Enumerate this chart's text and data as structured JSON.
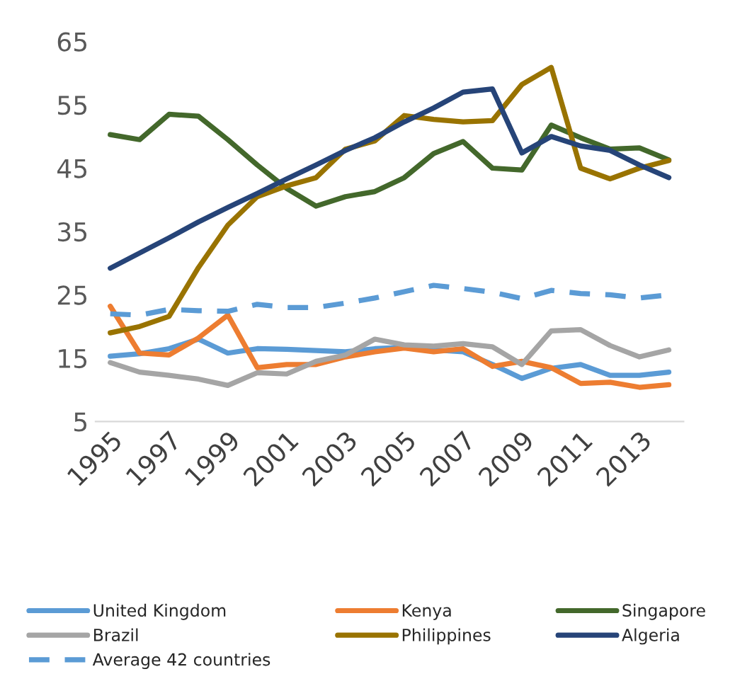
{
  "chart_data": {
    "type": "line",
    "categories": [
      "1995",
      null,
      "1997",
      null,
      "1999",
      null,
      "2001",
      null,
      "2003",
      null,
      "2005",
      null,
      "2007",
      null,
      "2009",
      null,
      "2011",
      null,
      "2013",
      null
    ],
    "series": [
      {
        "name": "United Kingdom",
        "color": "#5b9bd5",
        "values": [
          15.3,
          15.7,
          16.5,
          18,
          15.8,
          16.5,
          16.4,
          16.2,
          16,
          16.5,
          16.7,
          16.3,
          16,
          14,
          11.8,
          13.4,
          14,
          12.3,
          12.3,
          12.8
        ]
      },
      {
        "name": "Kenya",
        "color": "#ed7d31",
        "values": [
          23.2,
          15.8,
          15.5,
          18.2,
          21.8,
          13.5,
          14,
          14,
          15.2,
          16,
          16.6,
          16,
          16.5,
          13.7,
          14.5,
          13.5,
          11,
          11.2,
          10.4,
          10.8
        ]
      },
      {
        "name": "Singapore",
        "color": "#43682b",
        "values": [
          50.3,
          49.5,
          53.5,
          53.2,
          49.5,
          45.5,
          41.8,
          39,
          40.5,
          41.3,
          43.5,
          47.3,
          49.2,
          45,
          44.7,
          51.8,
          49.8,
          48,
          48.2,
          46.3
        ]
      },
      {
        "name": "Brazil",
        "color": "#a5a5a5",
        "values": [
          14.3,
          12.8,
          12.3,
          11.7,
          10.7,
          12.7,
          12.5,
          14.5,
          15.5,
          18,
          17.1,
          16.9,
          17.3,
          16.8,
          14,
          19.3,
          19.5,
          17,
          15.2,
          16.3
        ]
      },
      {
        "name": "Philippines",
        "color": "#997300",
        "values": [
          19,
          20,
          21.6,
          29.3,
          36,
          40.5,
          42.2,
          43.5,
          48,
          49.3,
          53.3,
          52.7,
          52.3,
          52.5,
          58.2,
          60.9,
          45,
          43.3,
          45,
          46.2
        ]
      },
      {
        "name": "Algeria",
        "color": "#264478",
        "values": [
          29.2,
          31.6,
          34,
          36.5,
          38.8,
          41,
          43.3,
          45.5,
          47.8,
          49.8,
          52.3,
          54.5,
          57,
          57.5,
          47.4,
          50,
          48.5,
          47.8,
          45.5,
          43.5
        ]
      },
      {
        "name": "Average 42 countries",
        "color": "#5b9bd5",
        "line_style": "dashed",
        "values": [
          22,
          21.8,
          22.7,
          22.5,
          22.4,
          23.5,
          23,
          23,
          23.7,
          24.5,
          25.5,
          26.5,
          26,
          25.4,
          24.4,
          25.7,
          25.2,
          25,
          24.5,
          25
        ]
      }
    ],
    "ylim": [
      5,
      65
    ],
    "yticks": [
      5,
      15,
      25,
      35,
      45,
      55,
      65
    ],
    "grid": false,
    "legend": "bottom",
    "line_style": "solid",
    "marker": "none"
  }
}
